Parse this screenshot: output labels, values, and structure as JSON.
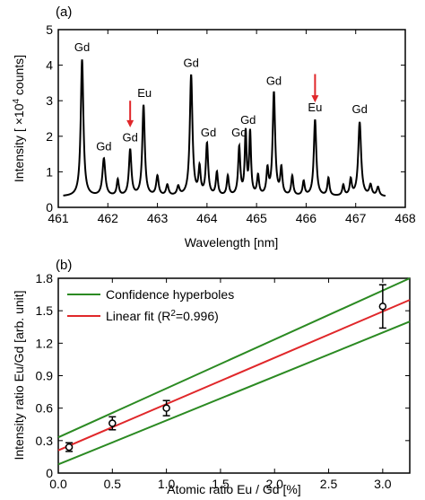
{
  "colors": {
    "spectrum": "#000000",
    "arrow": "#e0272a",
    "fit": "#e0272a",
    "confidence": "#2b8a22",
    "points": "#000000"
  },
  "chart_data": [
    {
      "type": "line",
      "panel_label": "(a)",
      "xlabel": "Wavelength [nm]",
      "ylabel": "Intensity [ ×10⁴ counts]",
      "ylabel_parts": {
        "pre": "Intensity [ ×10",
        "sup": "4",
        "post": " counts]"
      },
      "xlim": [
        461,
        468
      ],
      "ylim": [
        0,
        5
      ],
      "xticks": [
        "461",
        "462",
        "463",
        "464",
        "465",
        "466",
        "467",
        "468"
      ],
      "yticks": [
        "0",
        "1",
        "2",
        "3",
        "4",
        "5"
      ],
      "grid": false,
      "baseline": 0.3,
      "peaks": [
        {
          "x": 461.48,
          "y": 4.15,
          "w": 0.032
        },
        {
          "x": 461.92,
          "y": 1.35,
          "w": 0.035
        },
        {
          "x": 462.2,
          "y": 0.75,
          "w": 0.025
        },
        {
          "x": 462.45,
          "y": 1.6,
          "w": 0.03
        },
        {
          "x": 462.72,
          "y": 2.85,
          "w": 0.03
        },
        {
          "x": 463.0,
          "y": 0.85,
          "w": 0.03
        },
        {
          "x": 463.2,
          "y": 0.6,
          "w": 0.03
        },
        {
          "x": 463.42,
          "y": 0.55,
          "w": 0.03
        },
        {
          "x": 463.68,
          "y": 3.7,
          "w": 0.032
        },
        {
          "x": 463.85,
          "y": 1.05,
          "w": 0.025
        },
        {
          "x": 464.0,
          "y": 1.75,
          "w": 0.028
        },
        {
          "x": 464.2,
          "y": 0.95,
          "w": 0.025
        },
        {
          "x": 464.42,
          "y": 0.85,
          "w": 0.025
        },
        {
          "x": 464.65,
          "y": 1.65,
          "w": 0.026
        },
        {
          "x": 464.78,
          "y": 2.05,
          "w": 0.022
        },
        {
          "x": 464.87,
          "y": 2.05,
          "w": 0.022
        },
        {
          "x": 465.03,
          "y": 0.85,
          "w": 0.025
        },
        {
          "x": 465.22,
          "y": 1.0,
          "w": 0.025
        },
        {
          "x": 465.35,
          "y": 3.2,
          "w": 0.03
        },
        {
          "x": 465.5,
          "y": 1.05,
          "w": 0.025
        },
        {
          "x": 465.72,
          "y": 0.85,
          "w": 0.025
        },
        {
          "x": 465.95,
          "y": 0.7,
          "w": 0.025
        },
        {
          "x": 466.18,
          "y": 2.45,
          "w": 0.03
        },
        {
          "x": 466.45,
          "y": 0.8,
          "w": 0.025
        },
        {
          "x": 466.75,
          "y": 0.6,
          "w": 0.025
        },
        {
          "x": 466.9,
          "y": 0.75,
          "w": 0.025
        },
        {
          "x": 467.08,
          "y": 2.38,
          "w": 0.035
        },
        {
          "x": 467.3,
          "y": 0.6,
          "w": 0.03
        },
        {
          "x": 467.45,
          "y": 0.55,
          "w": 0.03
        }
      ],
      "spectrum_range": [
        461.1,
        467.6
      ],
      "annotations": [
        {
          "text": "Gd",
          "x": 461.48,
          "y": 4.4
        },
        {
          "text": "Gd",
          "x": 461.92,
          "y": 1.6
        },
        {
          "text": "Gd",
          "x": 462.45,
          "y": 1.85
        },
        {
          "text": "Eu",
          "x": 462.74,
          "y": 3.1
        },
        {
          "text": "Gd",
          "x": 463.68,
          "y": 3.95
        },
        {
          "text": "Gd",
          "x": 464.03,
          "y": 2.0
        },
        {
          "text": "Gd",
          "x": 464.65,
          "y": 2.0
        },
        {
          "text": "Gd",
          "x": 464.83,
          "y": 2.35
        },
        {
          "text": "Gd",
          "x": 465.35,
          "y": 3.45
        },
        {
          "text": "Eu",
          "x": 466.18,
          "y": 2.7
        },
        {
          "text": "Gd",
          "x": 467.08,
          "y": 2.65
        }
      ],
      "arrows": [
        {
          "x": 462.45,
          "y_from": 3.0,
          "y_to": 2.25
        },
        {
          "x": 466.18,
          "y_from": 3.75,
          "y_to": 2.95
        }
      ]
    },
    {
      "type": "scatter",
      "panel_label": "(b)",
      "xlabel": "Atomic ratio Eu / Gd [%]",
      "ylabel": "Intensity ratio Eu/Gd [arb. unit]",
      "xlim": [
        0,
        3.25
      ],
      "ylim": [
        0,
        1.8
      ],
      "xticks": [
        "0.0",
        "0.5",
        "1.0",
        "1.5",
        "2.0",
        "2.5",
        "3.0"
      ],
      "yticks": [
        "0",
        "0.3",
        "0.6",
        "0.9",
        "1.2",
        "1.5",
        "1.8"
      ],
      "grid": false,
      "legend_position": "top-left",
      "points": [
        {
          "x": 0.1,
          "y": 0.24,
          "err": 0.04
        },
        {
          "x": 0.5,
          "y": 0.46,
          "err": 0.06
        },
        {
          "x": 1.0,
          "y": 0.6,
          "err": 0.07
        },
        {
          "x": 3.0,
          "y": 1.54,
          "err": 0.2
        }
      ],
      "series": [
        {
          "name": "Confidence hyperboles",
          "type": "line",
          "x": [
            0,
            3.25
          ],
          "y_upper": [
            0.33,
            1.8
          ],
          "y_lower": [
            0.08,
            1.4
          ]
        },
        {
          "name_parts": {
            "pre": "Linear fit (R",
            "sup": "2",
            "post": "=0.996)"
          },
          "type": "line",
          "x": [
            0,
            3.25
          ],
          "y": [
            0.21,
            1.6
          ]
        }
      ]
    }
  ]
}
